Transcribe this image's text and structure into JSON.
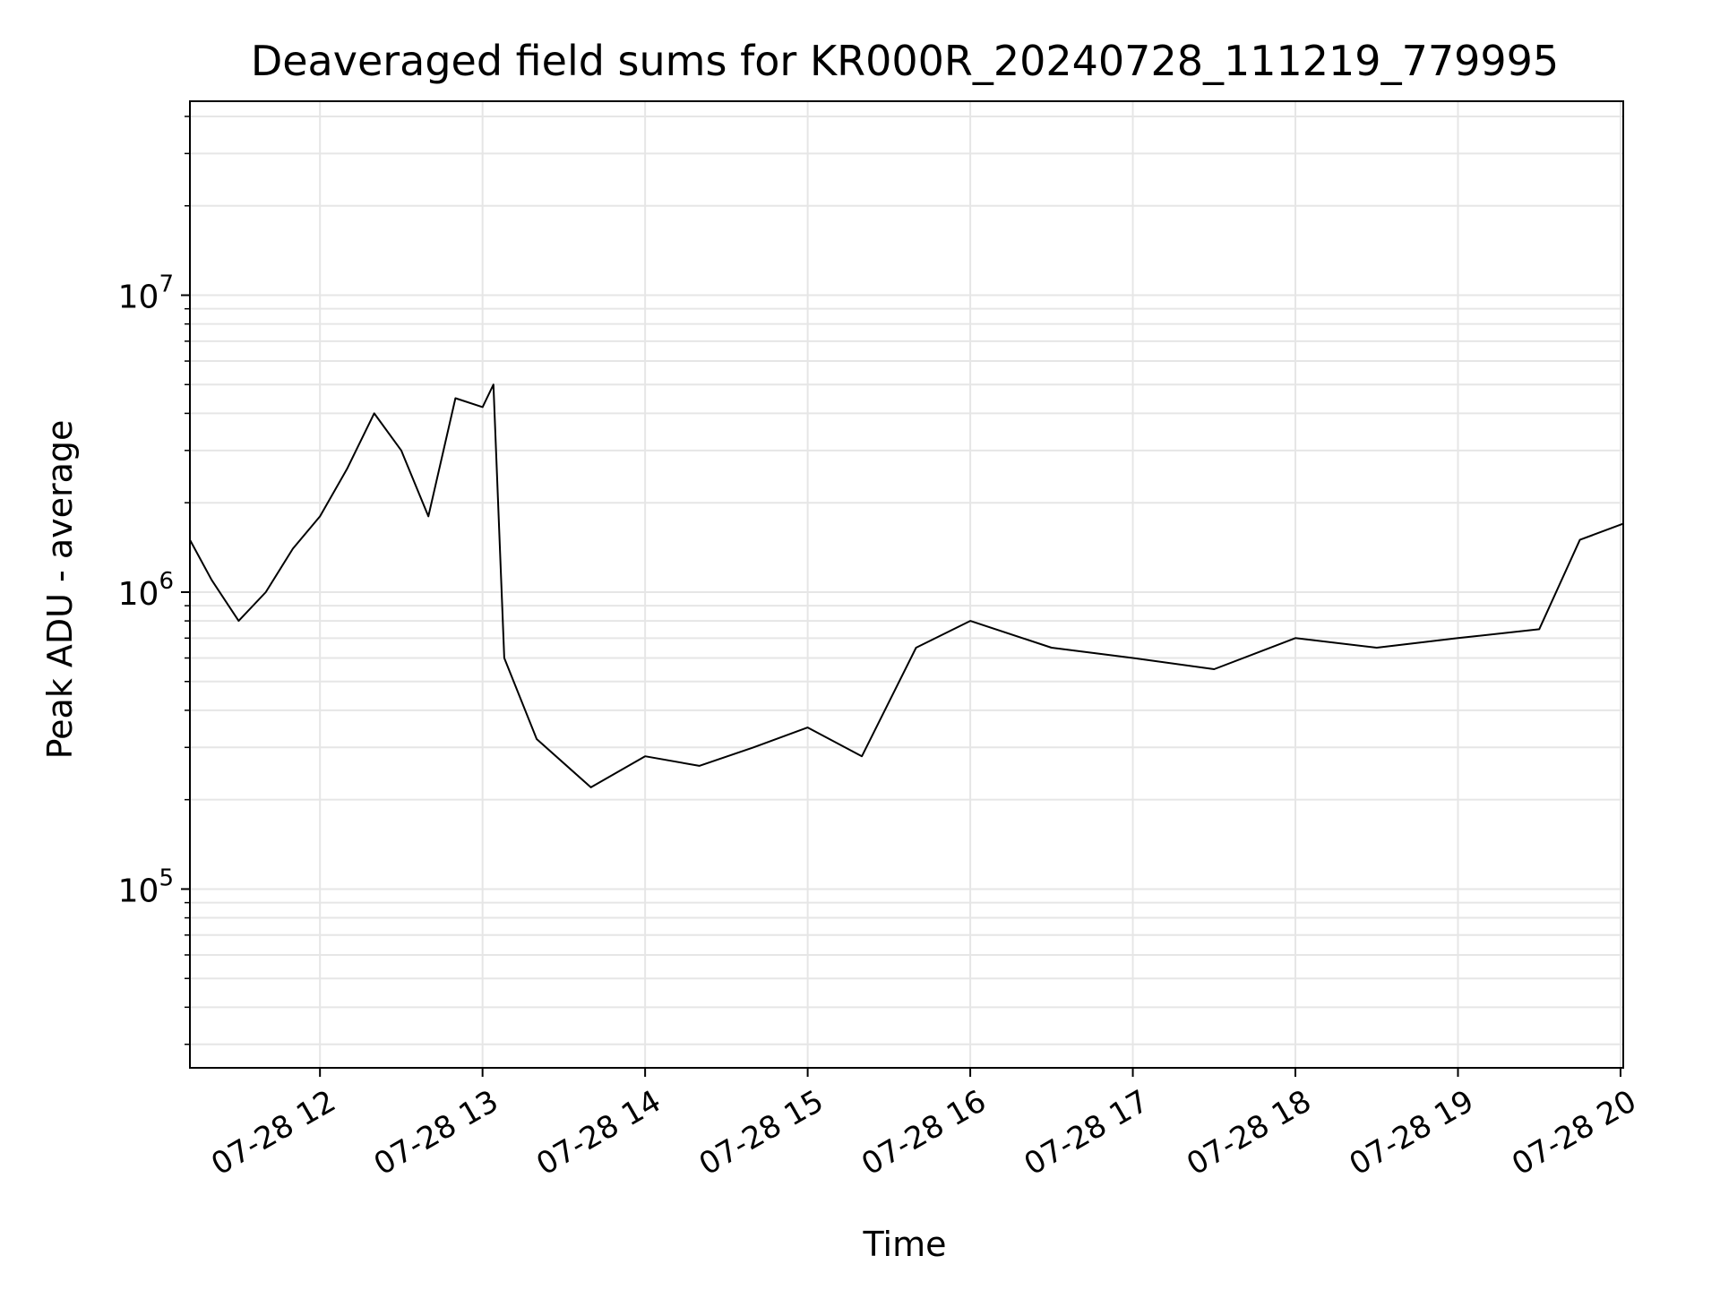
{
  "chart_data": {
    "type": "line",
    "title": "Deaveraged field sums for KR000R_20240728_111219_779995",
    "xlabel": "Time",
    "ylabel": "Peak ADU - average",
    "y_scale": "log",
    "ylim": [
      25000,
      45000000
    ],
    "xlim": [
      "2024-07-28 11:12",
      "2024-07-28 20:01"
    ],
    "grid": true,
    "x_ticks": [
      {
        "value": "2024-07-28 12:00",
        "label": "07-28 12"
      },
      {
        "value": "2024-07-28 13:00",
        "label": "07-28 13"
      },
      {
        "value": "2024-07-28 14:00",
        "label": "07-28 14"
      },
      {
        "value": "2024-07-28 15:00",
        "label": "07-28 15"
      },
      {
        "value": "2024-07-28 16:00",
        "label": "07-28 16"
      },
      {
        "value": "2024-07-28 17:00",
        "label": "07-28 17"
      },
      {
        "value": "2024-07-28 18:00",
        "label": "07-28 18"
      },
      {
        "value": "2024-07-28 19:00",
        "label": "07-28 19"
      },
      {
        "value": "2024-07-28 20:00",
        "label": "07-28 20"
      }
    ],
    "y_ticks": [
      {
        "value": 100000,
        "base": "10",
        "exp": "5"
      },
      {
        "value": 1000000,
        "base": "10",
        "exp": "6"
      },
      {
        "value": 10000000,
        "base": "10",
        "exp": "7"
      }
    ],
    "series": [
      {
        "color": "#000000",
        "x": [
          "2024-07-28 11:12",
          "2024-07-28 11:20",
          "2024-07-28 11:30",
          "2024-07-28 11:40",
          "2024-07-28 11:50",
          "2024-07-28 12:00",
          "2024-07-28 12:10",
          "2024-07-28 12:20",
          "2024-07-28 12:30",
          "2024-07-28 12:40",
          "2024-07-28 12:50",
          "2024-07-28 13:00",
          "2024-07-28 13:04",
          "2024-07-28 13:08",
          "2024-07-28 13:20",
          "2024-07-28 13:40",
          "2024-07-28 14:00",
          "2024-07-28 14:20",
          "2024-07-28 14:40",
          "2024-07-28 15:00",
          "2024-07-28 15:20",
          "2024-07-28 15:40",
          "2024-07-28 16:00",
          "2024-07-28 16:30",
          "2024-07-28 17:00",
          "2024-07-28 17:30",
          "2024-07-28 18:00",
          "2024-07-28 18:30",
          "2024-07-28 19:00",
          "2024-07-28 19:30",
          "2024-07-28 19:45",
          "2024-07-28 20:01"
        ],
        "y": [
          1500000,
          1100000,
          800000,
          1000000,
          1400000,
          1800000,
          2600000,
          4000000,
          3000000,
          1800000,
          4500000,
          4200000,
          5000000,
          600000,
          320000,
          220000,
          280000,
          260000,
          300000,
          350000,
          280000,
          650000,
          800000,
          650000,
          600000,
          550000,
          700000,
          650000,
          700000,
          750000,
          1500000,
          1700000
        ]
      }
    ]
  }
}
